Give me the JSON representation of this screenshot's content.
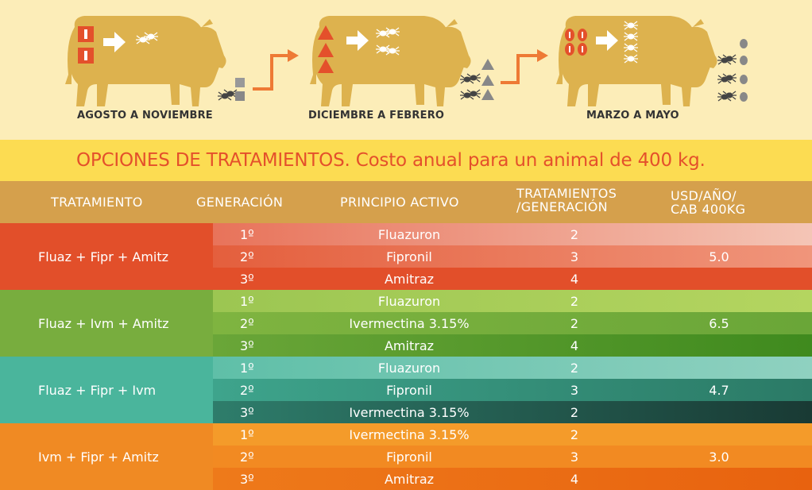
{
  "stages": [
    {
      "label": "AGOSTO A NOVIEMBRE"
    },
    {
      "label": "DICIEMBRE A FEBRERO"
    },
    {
      "label": "MARZO A MAYO"
    }
  ],
  "banner": "OPCIONES DE TRATAMIENTOS. Costo anual para un animal de 400 kg.",
  "headers": {
    "tratamiento": "TRATAMIENTO",
    "generacion": "GENERACIÓN",
    "principio": "PRINCIPIO ACTIVO",
    "trat_line1": "TRATAMIENTOS",
    "trat_line2": "/GENERACIÓN",
    "usd_line1": "USD/AÑO/",
    "usd_line2": "CAB 400KG"
  },
  "groups": [
    {
      "label": "Fluaz + Fipr + Amitz",
      "usd": "5.0",
      "rows": [
        {
          "gen": "1º",
          "principio": "Fluazuron",
          "trat": "2"
        },
        {
          "gen": "2º",
          "principio": "Fipronil",
          "trat": "3"
        },
        {
          "gen": "3º",
          "principio": "Amitraz",
          "trat": "4"
        }
      ]
    },
    {
      "label": "Fluaz + Ivm + Amitz",
      "usd": "6.5",
      "rows": [
        {
          "gen": "1º",
          "principio": "Fluazuron",
          "trat": "2"
        },
        {
          "gen": "2º",
          "principio": "Ivermectina 3.15%",
          "trat": "2"
        },
        {
          "gen": "3º",
          "principio": "Amitraz",
          "trat": "4"
        }
      ]
    },
    {
      "label": "Fluaz + Fipr + Ivm",
      "usd": "4.7",
      "rows": [
        {
          "gen": "1º",
          "principio": "Fluazuron",
          "trat": "2"
        },
        {
          "gen": "2º",
          "principio": "Fipronil",
          "trat": "3"
        },
        {
          "gen": "3º",
          "principio": "Ivermectina 3.15%",
          "trat": "2"
        }
      ]
    },
    {
      "label": "Ivm + Fipr + Amitz",
      "usd": "3.0",
      "rows": [
        {
          "gen": "1º",
          "principio": "Ivermectina 3.15%",
          "trat": "2"
        },
        {
          "gen": "2º",
          "principio": "Fipronil",
          "trat": "3"
        },
        {
          "gen": "3º",
          "principio": "Amitraz",
          "trat": "4"
        }
      ]
    }
  ],
  "colors": {
    "cow": "#ddb24e",
    "accent_orange": "#ee7a35",
    "red_group": "#e24f2a",
    "green_group": "#78ad3e",
    "teal_group": "#4ab59c",
    "orange_group": "#f08a23"
  }
}
